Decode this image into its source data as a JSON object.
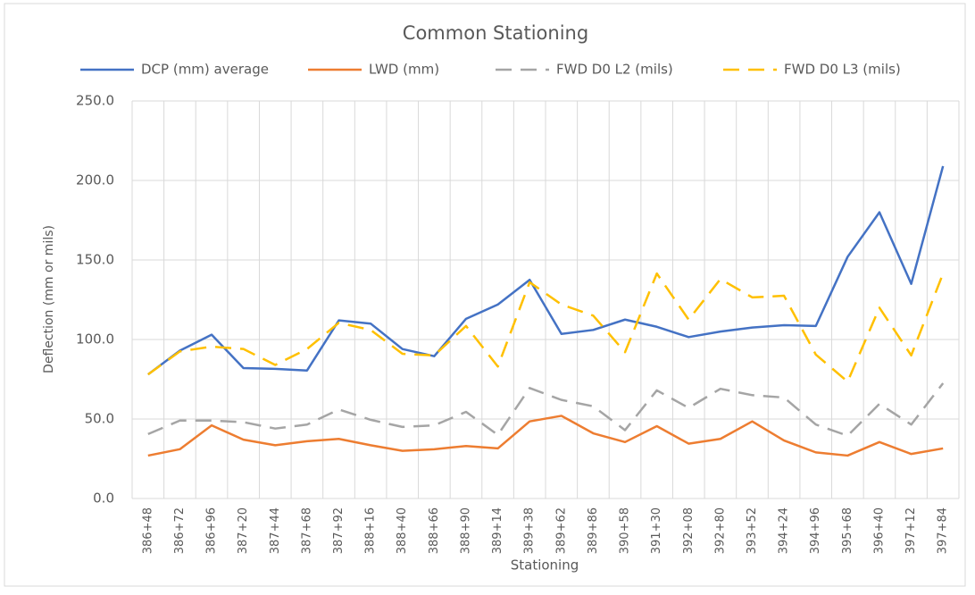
{
  "chart_data": {
    "type": "line",
    "title": "Common Stationing",
    "x_label": "Stationing",
    "y_label": "Deflection (mm or mils)",
    "categories": [
      "386+48",
      "386+72",
      "386+96",
      "387+20",
      "387+44",
      "387+68",
      "387+92",
      "388+16",
      "388+40",
      "388+66",
      "388+90",
      "389+14",
      "389+38",
      "389+62",
      "389+86",
      "390+58",
      "391+30",
      "392+08",
      "392+80",
      "393+52",
      "394+24",
      "394+96",
      "395+68",
      "396+40",
      "397+12",
      "397+84"
    ],
    "series": [
      {
        "name": "DCP (mm) average",
        "color": "#4472c4",
        "dashed": false,
        "values": [
          78,
          93,
          103,
          82,
          81.5,
          80.5,
          112,
          110,
          94,
          89.5,
          113,
          122,
          137.5,
          103.5,
          106,
          112.5,
          108,
          101.5,
          105,
          107.5,
          109,
          108.5,
          152,
          180,
          135,
          209
        ]
      },
      {
        "name": "LWD (mm)",
        "color": "#ed7d31",
        "dashed": false,
        "values": [
          27,
          31,
          46,
          37,
          33.5,
          36,
          37.5,
          33.5,
          30,
          31,
          33,
          31.5,
          48.5,
          52,
          41,
          35.5,
          45.5,
          34.5,
          37.5,
          48.5,
          36.5,
          29,
          27,
          35.5,
          28,
          31.5
        ]
      },
      {
        "name": "FWD D0 L2 (mils)",
        "color": "#a5a5a5",
        "dashed": true,
        "values": [
          40.5,
          49,
          49,
          48,
          44,
          46.5,
          56,
          49.5,
          45,
          46,
          54.5,
          40,
          69.5,
          62,
          58,
          43,
          68,
          57,
          69,
          65,
          63.5,
          46.5,
          39.5,
          59.5,
          46.5,
          72.5
        ]
      },
      {
        "name": "FWD D0 L3 (mils)",
        "color": "#ffc000",
        "dashed": true,
        "values": [
          78,
          92.5,
          95.5,
          94,
          84,
          94,
          110.5,
          106,
          91,
          90,
          108.5,
          83,
          136,
          122,
          115,
          92,
          141.5,
          112.5,
          138,
          126.5,
          127.5,
          90.5,
          73.5,
          120,
          90,
          141.5
        ]
      }
    ],
    "ylim": [
      0,
      250
    ],
    "yticks": [
      {
        "value": 0,
        "label": "0.0"
      },
      {
        "value": 50,
        "label": "50.0"
      },
      {
        "value": 100,
        "label": "100.0"
      },
      {
        "value": 150,
        "label": "150.0"
      },
      {
        "value": 200,
        "label": "200.0"
      },
      {
        "value": 250,
        "label": "250.0"
      }
    ],
    "grid": true,
    "legend": "top"
  }
}
